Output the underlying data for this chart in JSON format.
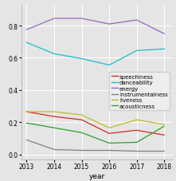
{
  "years": [
    2013,
    2014,
    2015,
    2016,
    2017,
    2018
  ],
  "series": {
    "speechiness": {
      "values": [
        0.265,
        0.235,
        0.215,
        0.13,
        0.15,
        0.12
      ],
      "color": "#d62728",
      "label": "speechiness"
    },
    "danceability": {
      "values": [
        0.695,
        0.625,
        0.595,
        0.555,
        0.645,
        0.655
      ],
      "color": "#17becf",
      "label": "danceability"
    },
    "energy": {
      "values": [
        0.775,
        0.845,
        0.845,
        0.81,
        0.835,
        0.75
      ],
      "color": "#9467bd",
      "label": "energy"
    },
    "instrumentalness": {
      "values": [
        0.09,
        0.03,
        0.025,
        0.025,
        0.02,
        0.02
      ],
      "color": "#7f7f7f",
      "label": "instrumentalness"
    },
    "liveness": {
      "values": [
        0.265,
        0.265,
        0.245,
        0.165,
        0.215,
        0.185
      ],
      "color": "#bcbd22",
      "label": "liveness"
    },
    "acousticness": {
      "values": [
        0.195,
        0.165,
        0.135,
        0.07,
        0.075,
        0.175
      ],
      "color": "#2ca02c",
      "label": "acousticness"
    }
  },
  "xlabel": "year",
  "ylabel": "",
  "ylim": [
    -0.03,
    0.93
  ],
  "xlim": [
    2012.8,
    2018.3
  ],
  "yticks": [
    0.0,
    0.2,
    0.4,
    0.6,
    0.8
  ],
  "bg_color": "#e5e5e5",
  "grid_color": "#ffffff",
  "legend_fontsize": 5.0,
  "axis_fontsize": 6.5,
  "tick_fontsize": 5.5
}
